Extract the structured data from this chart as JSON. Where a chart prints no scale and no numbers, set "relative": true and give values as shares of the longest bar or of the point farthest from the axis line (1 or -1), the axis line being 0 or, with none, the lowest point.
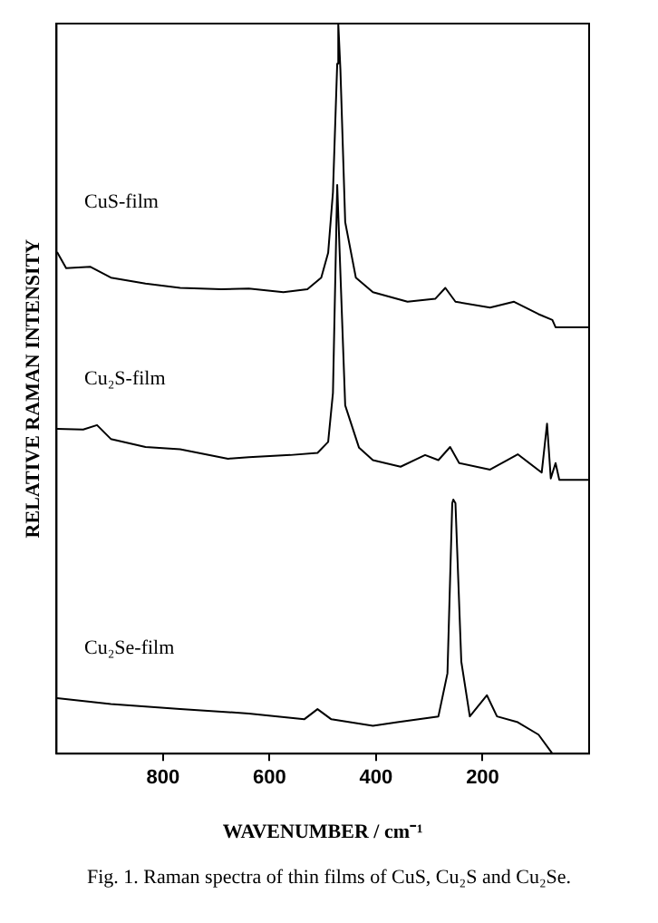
{
  "chart_data": {
    "type": "line",
    "relative": true,
    "xlabel": "WAVENUMBER / cm⁻¹",
    "ylabel": "RELATIVE RAMAN INTENSITY",
    "annotations": [
      "Fig. 1. Raman spectra of thin films of CuS, Cu₂S and Cu₂Se."
    ],
    "xlim": [
      1000,
      0
    ],
    "xticks": [
      800,
      600,
      400,
      200
    ],
    "grid": false,
    "legend": false,
    "marker": "none",
    "line_style": "solid",
    "series": [
      {
        "name": "CuS-film",
        "color": "#000000",
        "x": [
          999,
          982,
          937,
          898,
          833,
          768,
          691,
          639,
          574,
          529,
          503,
          490,
          481,
          473,
          471,
          467,
          458,
          438,
          406,
          341,
          289,
          270,
          251,
          186,
          141,
          95,
          69,
          63,
          0
        ],
        "values": [
          0.687,
          0.665,
          0.667,
          0.652,
          0.644,
          0.638,
          0.636,
          0.637,
          0.632,
          0.636,
          0.652,
          0.686,
          0.769,
          0.945,
          1.0,
          0.937,
          0.728,
          0.652,
          0.632,
          0.619,
          0.623,
          0.638,
          0.619,
          0.611,
          0.619,
          0.602,
          0.594,
          0.584,
          0.584
        ]
      },
      {
        "name": "Cu₂S-film",
        "color": "#000000",
        "x": [
          999,
          950,
          924,
          898,
          833,
          768,
          678,
          639,
          561,
          510,
          490,
          481,
          473,
          458,
          432,
          406,
          354,
          308,
          283,
          261,
          244,
          186,
          134,
          89,
          79,
          72,
          63,
          56,
          0
        ],
        "values": [
          0.445,
          0.444,
          0.45,
          0.431,
          0.42,
          0.417,
          0.404,
          0.406,
          0.409,
          0.412,
          0.427,
          0.494,
          0.779,
          0.477,
          0.419,
          0.402,
          0.393,
          0.409,
          0.402,
          0.42,
          0.398,
          0.389,
          0.41,
          0.385,
          0.452,
          0.377,
          0.398,
          0.375,
          0.375
        ]
      },
      {
        "name": "Cu₂Se-film",
        "color": "#000000",
        "x": [
          999,
          898,
          768,
          639,
          535,
          510,
          484,
          406,
          360,
          283,
          266,
          257,
          255,
          251,
          240,
          224,
          192,
          173,
          134,
          95,
          69
        ],
        "values": [
          0.076,
          0.068,
          0.061,
          0.055,
          0.047,
          0.061,
          0.047,
          0.038,
          0.043,
          0.051,
          0.11,
          0.343,
          0.348,
          0.343,
          0.126,
          0.051,
          0.08,
          0.051,
          0.043,
          0.026,
          0
        ]
      }
    ]
  }
}
